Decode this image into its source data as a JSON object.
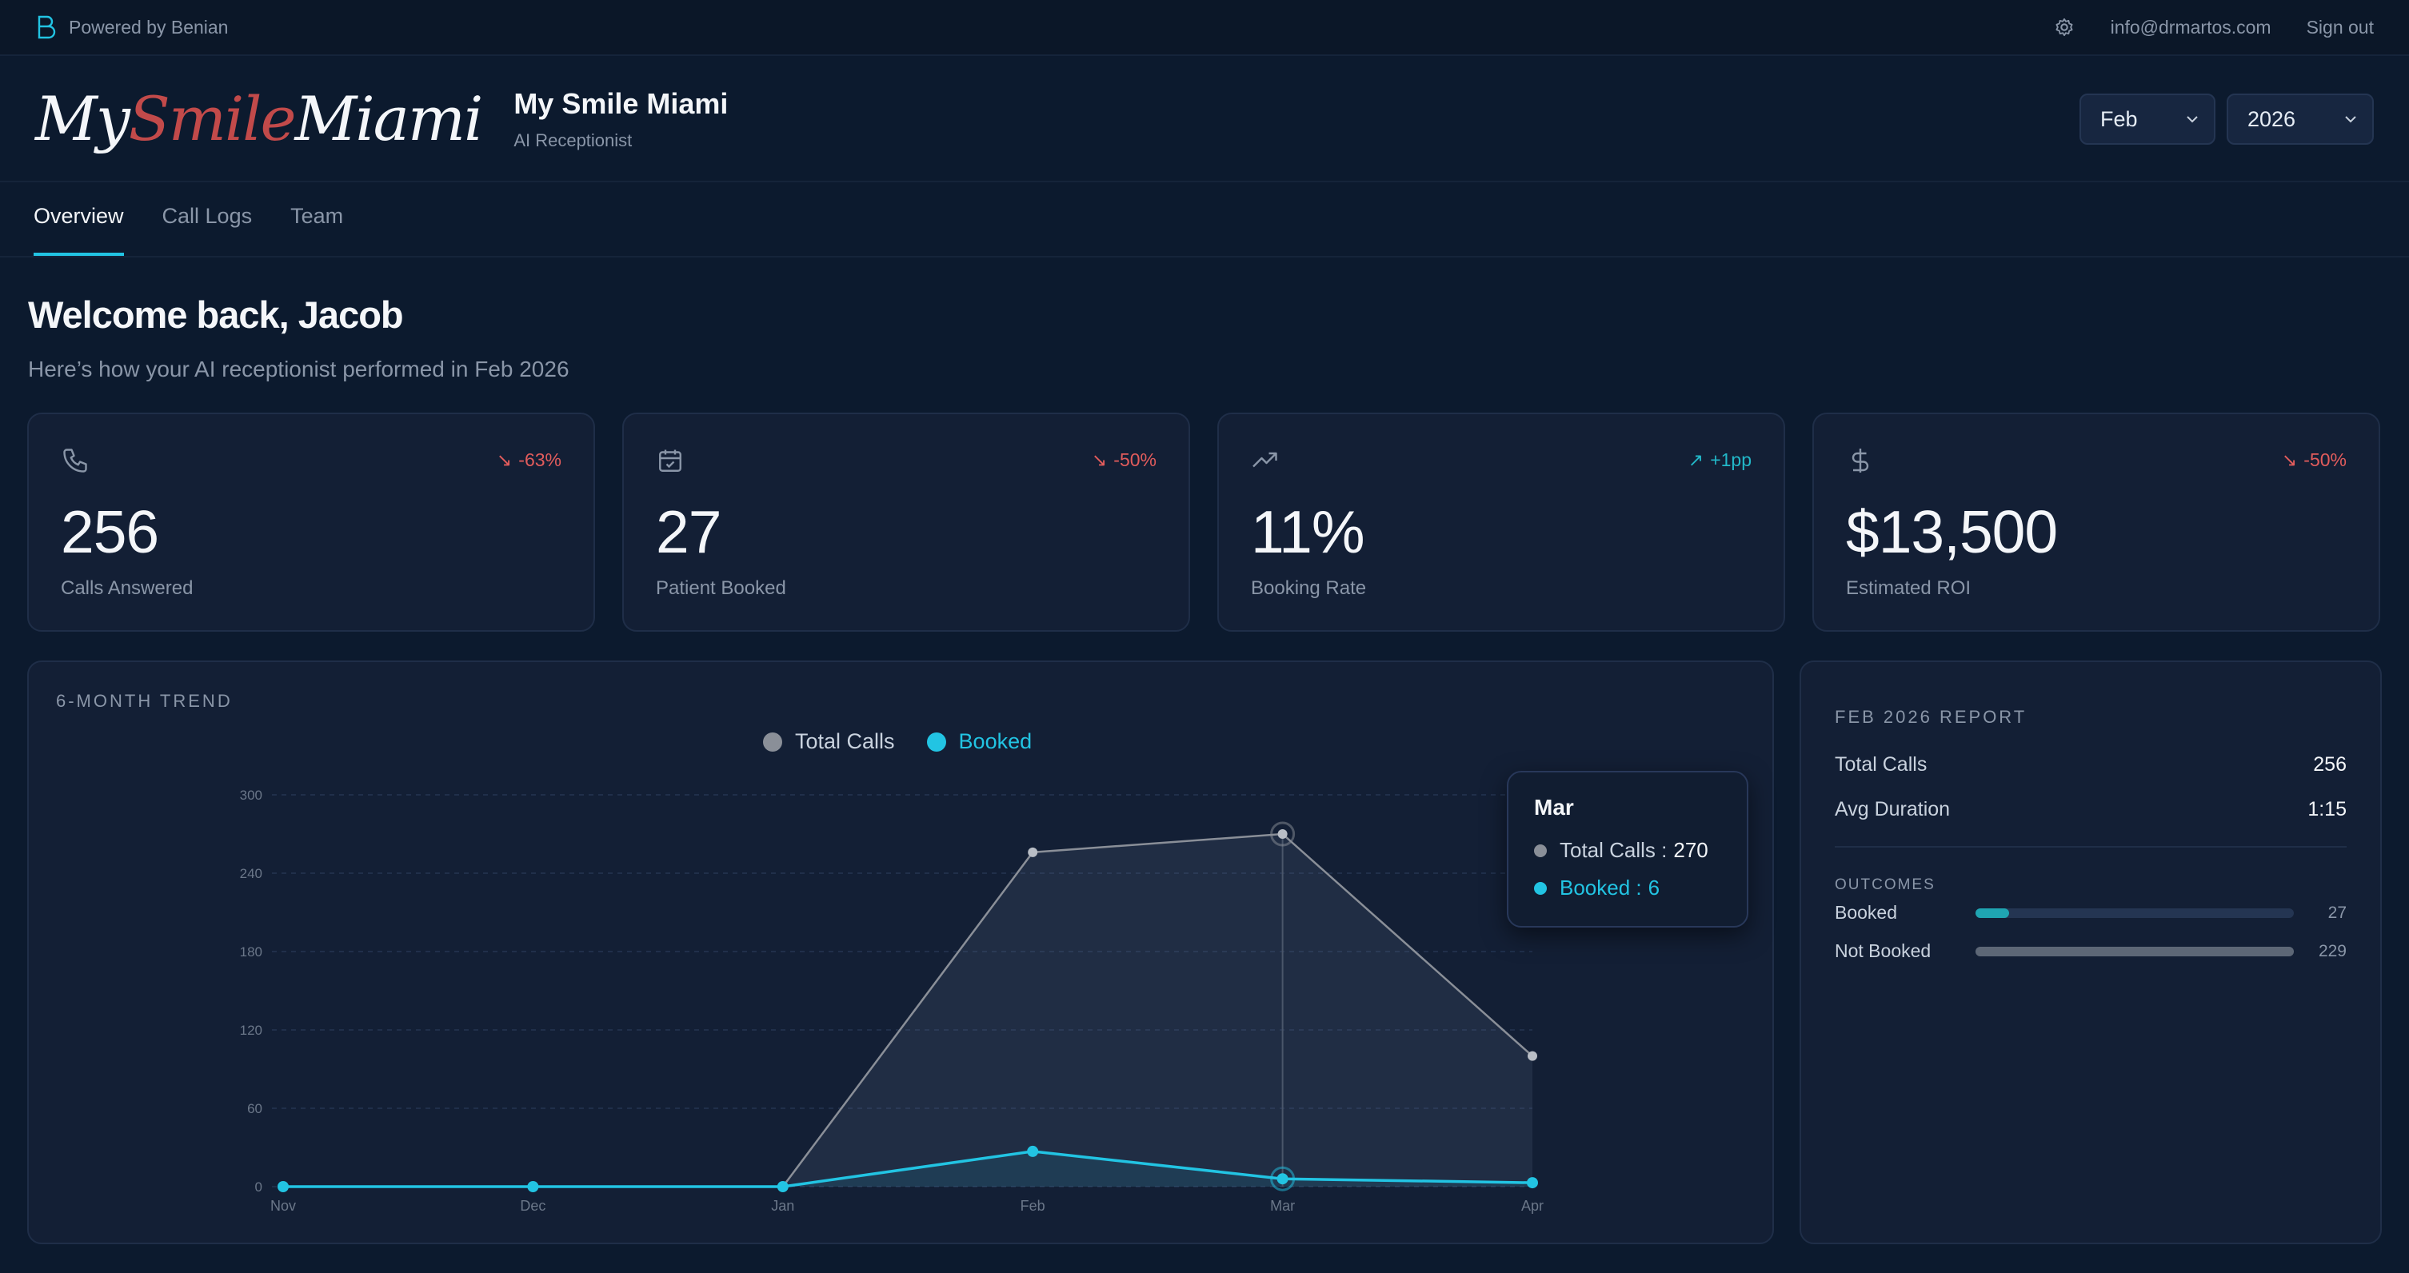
{
  "topbar": {
    "powered_by": "Powered by Benian",
    "email": "info@drmartos.com",
    "sign_out": "Sign out"
  },
  "header": {
    "logo": {
      "my": "My",
      "smile": "Smile",
      "miami": "Miami"
    },
    "clinic_name": "My Smile Miami",
    "clinic_sub": "AI Receptionist",
    "month": "Feb",
    "year": "2026"
  },
  "tabs": [
    {
      "label": "Overview",
      "active": true
    },
    {
      "label": "Call Logs",
      "active": false
    },
    {
      "label": "Team",
      "active": false
    }
  ],
  "welcome": "Welcome back, Jacob",
  "subtitle": "Here’s how your AI receptionist performed in Feb 2026",
  "stats": [
    {
      "icon": "phone-icon",
      "delta": "-63%",
      "trend": "down",
      "value": "256",
      "label": "Calls Answered"
    },
    {
      "icon": "calendar-check-icon",
      "delta": "-50%",
      "trend": "down",
      "value": "27",
      "label": "Patient Booked"
    },
    {
      "icon": "trending-up-icon",
      "delta": "+1pp",
      "trend": "up",
      "value": "11%",
      "label": "Booking Rate"
    },
    {
      "icon": "dollar-icon",
      "delta": "-50%",
      "trend": "down",
      "value": "$13,500",
      "label": "Estimated ROI"
    }
  ],
  "trend": {
    "title": "6-MONTH TREND",
    "tooltip": {
      "title": "Mar",
      "total_label": "Total Calls :",
      "total_value": "270",
      "booked_label": "Booked :",
      "booked_value": "6"
    }
  },
  "chart_data": {
    "type": "area",
    "categories": [
      "Nov",
      "Dec",
      "Jan",
      "Feb",
      "Mar",
      "Apr"
    ],
    "series": [
      {
        "name": "Total Calls",
        "values": [
          0,
          0,
          0,
          256,
          270,
          100
        ],
        "color": "#8a8f98"
      },
      {
        "name": "Booked",
        "values": [
          0,
          0,
          0,
          27,
          6,
          3
        ],
        "color": "#22c4e3"
      }
    ],
    "yticks": [
      "300",
      "240",
      "180",
      "120",
      "60",
      "0"
    ],
    "ylim": [
      0,
      300
    ],
    "grid": true,
    "legend": "top-center"
  },
  "report": {
    "title": "FEB 2026 REPORT",
    "total_calls_label": "Total Calls",
    "total_calls_value": "256",
    "avg_duration_label": "Avg Duration",
    "avg_duration_value": "1:15",
    "outcomes_title": "OUTCOMES",
    "outcomes": [
      {
        "label": "Booked",
        "value": "27",
        "fraction": 0.105,
        "color": "#1fa5b2"
      },
      {
        "label": "Not Booked",
        "value": "229",
        "fraction": 1.0,
        "color": "#5d6776"
      }
    ]
  }
}
